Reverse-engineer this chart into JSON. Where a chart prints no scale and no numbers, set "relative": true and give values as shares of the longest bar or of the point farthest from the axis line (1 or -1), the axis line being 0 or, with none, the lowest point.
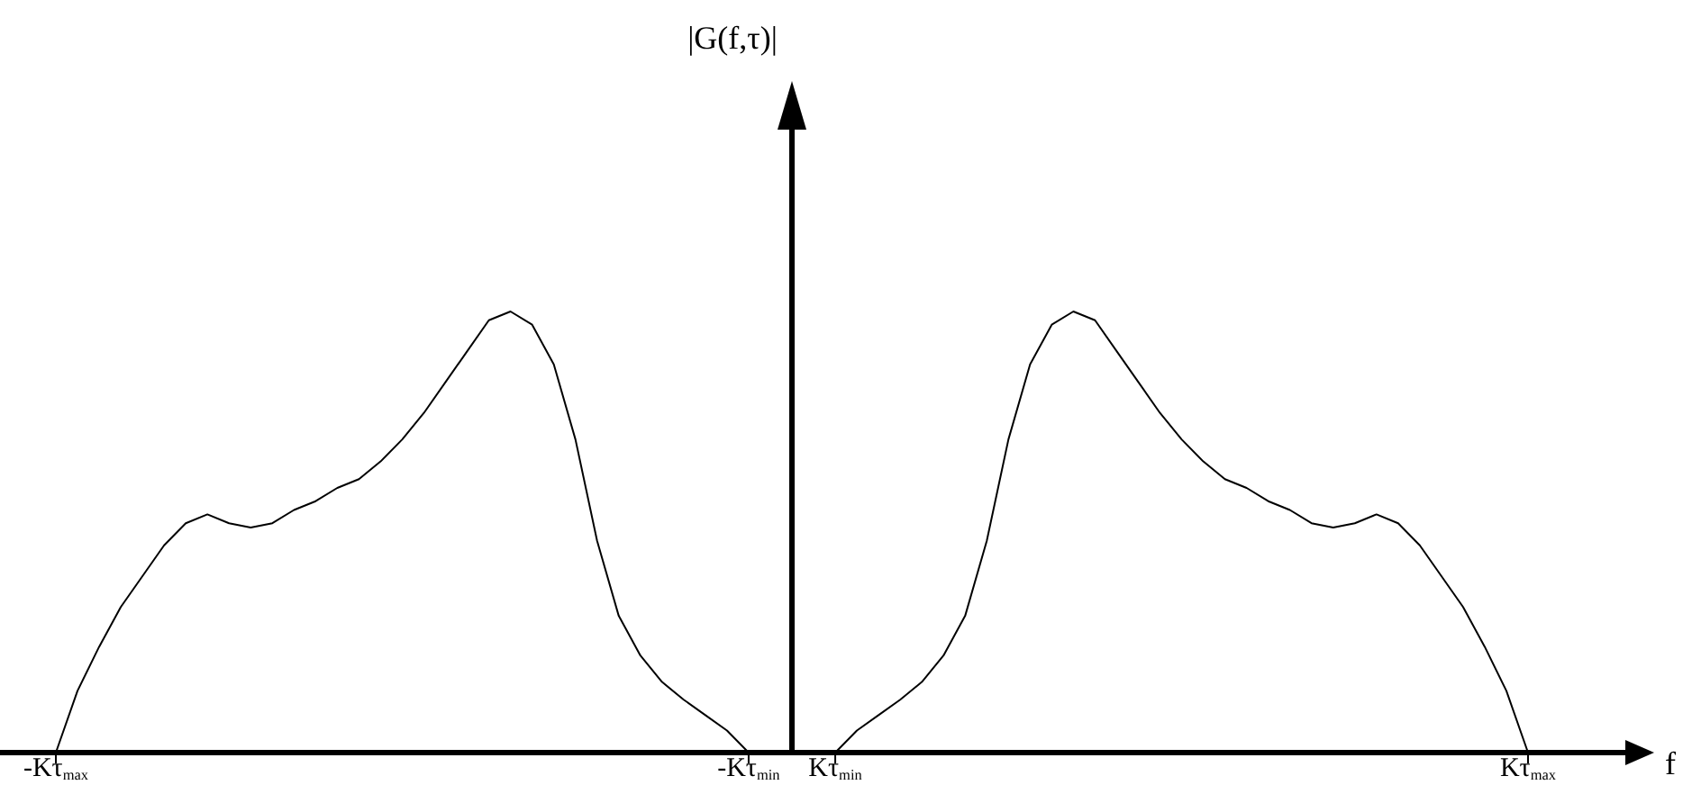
{
  "chart_data": {
    "type": "line",
    "relative": true,
    "annotations": [
      "|G(f,τ)|"
    ],
    "xlabel": "f",
    "categories": [
      "-Kτ$_{max}$",
      null,
      null,
      null,
      null,
      null,
      null,
      null,
      null,
      null,
      null,
      null,
      null,
      null,
      null,
      null,
      null,
      null,
      null,
      null,
      null,
      null,
      null,
      null,
      null,
      null,
      null,
      null,
      null,
      null,
      null,
      null,
      "-Kτ$_{min}$",
      null,
      null,
      null,
      "Kτ$_{min}$",
      null,
      null,
      null,
      null,
      null,
      null,
      null,
      null,
      null,
      null,
      null,
      null,
      null,
      null,
      null,
      null,
      null,
      null,
      null,
      null,
      null,
      null,
      null,
      null,
      null,
      null,
      null,
      null,
      null,
      null,
      null,
      "Kτ$_{max}$"
    ],
    "series": [
      {
        "color": "#000000",
        "values": [
          0,
          0.14,
          0.24,
          0.33,
          0.4,
          0.47,
          0.52,
          0.54,
          0.52,
          0.51,
          0.52,
          0.55,
          0.57,
          0.6,
          0.62,
          0.66,
          0.71,
          0.77,
          0.84,
          0.91,
          0.98,
          1,
          0.97,
          0.88,
          0.71,
          0.48,
          0.31,
          0.22,
          0.16,
          0.12,
          0.085,
          0.05,
          0,
          null,
          null,
          null,
          null,
          null,
          null,
          null,
          null,
          null,
          null,
          null,
          null,
          null,
          null,
          null,
          null,
          null,
          null,
          null,
          null,
          null,
          null,
          null,
          null,
          null,
          null,
          null,
          null,
          null,
          null,
          null,
          null,
          null,
          null,
          null,
          null
        ]
      },
      {
        "color": "#000000",
        "values": [
          null,
          null,
          null,
          null,
          null,
          null,
          null,
          null,
          null,
          null,
          null,
          null,
          null,
          null,
          null,
          null,
          null,
          null,
          null,
          null,
          null,
          null,
          null,
          null,
          null,
          null,
          null,
          null,
          null,
          null,
          null,
          null,
          null,
          null,
          null,
          null,
          0,
          0.05,
          0.085,
          0.12,
          0.16,
          0.22,
          0.31,
          0.48,
          0.71,
          0.88,
          0.97,
          1,
          0.98,
          0.91,
          0.84,
          0.77,
          0.71,
          0.66,
          0.62,
          0.6,
          0.57,
          0.55,
          0.52,
          0.51,
          0.52,
          0.54,
          0.52,
          0.47,
          0.4,
          0.33,
          0.24,
          0.14,
          0
        ]
      }
    ]
  }
}
